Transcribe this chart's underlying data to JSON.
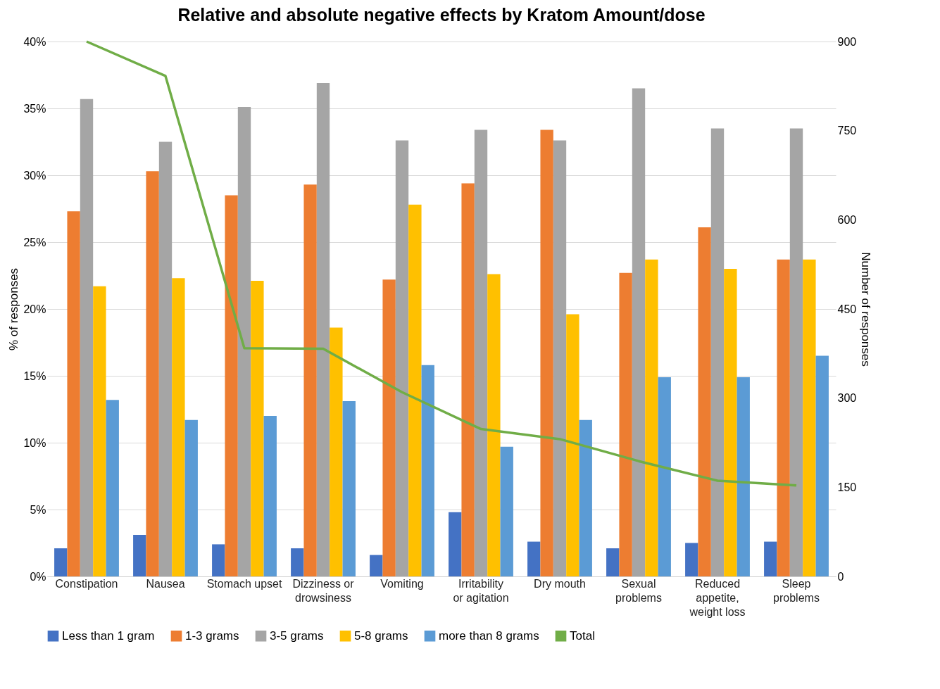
{
  "chart_data": {
    "type": "bar",
    "title": "Relative and absolute negative effects by Kratom Amount/dose",
    "ylabel": "% of responses",
    "y2label": "Number of responses",
    "categories": [
      "Constipation",
      "Nausea",
      "Stomach upset",
      "Dizziness or drowsiness",
      "Vomiting",
      "Irritability or agitation",
      "Dry mouth",
      "Sexual problems",
      "Reduced appetite, weight loss",
      "Sleep problems"
    ],
    "series": [
      {
        "name": "Less than 1 gram",
        "color": "#4472c4",
        "values": [
          2.1,
          3.1,
          2.4,
          2.1,
          1.6,
          4.8,
          2.6,
          2.1,
          2.5,
          2.6
        ]
      },
      {
        "name": "1-3 grams",
        "color": "#ed7d31",
        "values": [
          27.3,
          30.3,
          28.5,
          29.3,
          22.2,
          29.4,
          33.4,
          22.7,
          26.1,
          23.7
        ]
      },
      {
        "name": "3-5 grams",
        "color": "#a5a5a5",
        "values": [
          35.7,
          32.5,
          35.1,
          36.9,
          32.6,
          33.4,
          32.6,
          36.5,
          33.5,
          33.5
        ]
      },
      {
        "name": "5-8 grams",
        "color": "#ffc000",
        "values": [
          21.7,
          22.3,
          22.1,
          18.6,
          27.8,
          22.6,
          19.6,
          23.7,
          23.0,
          23.7
        ]
      },
      {
        "name": "more than 8 grams",
        "color": "#5b9bd5",
        "values": [
          13.2,
          11.7,
          12.0,
          13.1,
          15.8,
          9.7,
          11.7,
          14.9,
          14.9,
          16.5
        ]
      },
      {
        "name": "Total",
        "color": "#70ad47",
        "type": "line",
        "axis": "y2",
        "values": [
          900,
          842,
          384,
          383,
          310,
          248,
          231,
          194,
          161,
          153
        ]
      }
    ],
    "ylim": [
      0,
      40
    ],
    "yticks": [
      {
        "value": 0,
        "label": "0%"
      },
      {
        "value": 5,
        "label": "5%"
      },
      {
        "value": 10,
        "label": "10%"
      },
      {
        "value": 15,
        "label": "15%"
      },
      {
        "value": 20,
        "label": "20%"
      },
      {
        "value": 25,
        "label": "25%"
      },
      {
        "value": 30,
        "label": "30%"
      },
      {
        "value": 35,
        "label": "35%"
      },
      {
        "value": 40,
        "label": "40%"
      }
    ],
    "y2lim": [
      0,
      900
    ],
    "y2ticks": [
      0,
      150,
      300,
      450,
      600,
      750,
      900
    ],
    "grid": "y",
    "legend": "bottom",
    "marker": "none",
    "line_style": "solid"
  }
}
